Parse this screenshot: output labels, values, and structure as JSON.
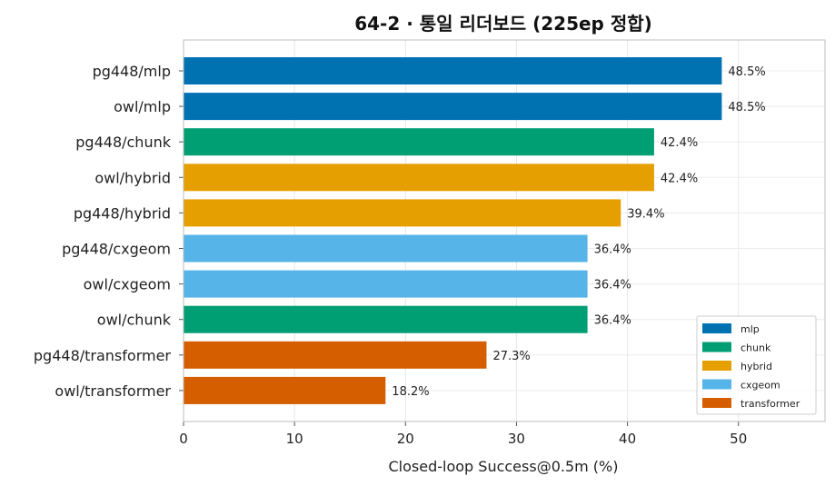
{
  "chart_data": {
    "type": "bar",
    "orientation": "horizontal",
    "title": "64-2 · 통일 리더보드 (225ep 정합)",
    "xlabel": "Closed-loop Success@0.5m (%)",
    "ylabel": "",
    "xlim": [
      0,
      57.8
    ],
    "xticks": [
      0,
      10,
      20,
      30,
      40,
      50
    ],
    "grid": true,
    "legend_position": "lower-right",
    "categories": [
      "pg448/mlp",
      "owl/mlp",
      "pg448/chunk",
      "owl/hybrid",
      "pg448/hybrid",
      "pg448/cxgeom",
      "owl/cxgeom",
      "owl/chunk",
      "pg448/transformer",
      "owl/transformer"
    ],
    "values": [
      48.5,
      48.5,
      42.4,
      42.4,
      39.4,
      36.4,
      36.4,
      36.4,
      27.3,
      18.2
    ],
    "value_labels": [
      "48.5%",
      "48.5%",
      "42.4%",
      "42.4%",
      "39.4%",
      "36.4%",
      "36.4%",
      "36.4%",
      "27.3%",
      "18.2%"
    ],
    "bar_groups": [
      "mlp",
      "mlp",
      "chunk",
      "hybrid",
      "hybrid",
      "cxgeom",
      "cxgeom",
      "chunk",
      "transformer",
      "transformer"
    ],
    "legend": [
      {
        "name": "mlp",
        "color": "#0072B2"
      },
      {
        "name": "chunk",
        "color": "#009E73"
      },
      {
        "name": "hybrid",
        "color": "#E69F00"
      },
      {
        "name": "cxgeom",
        "color": "#56B4E9"
      },
      {
        "name": "transformer",
        "color": "#D55E00"
      }
    ]
  }
}
